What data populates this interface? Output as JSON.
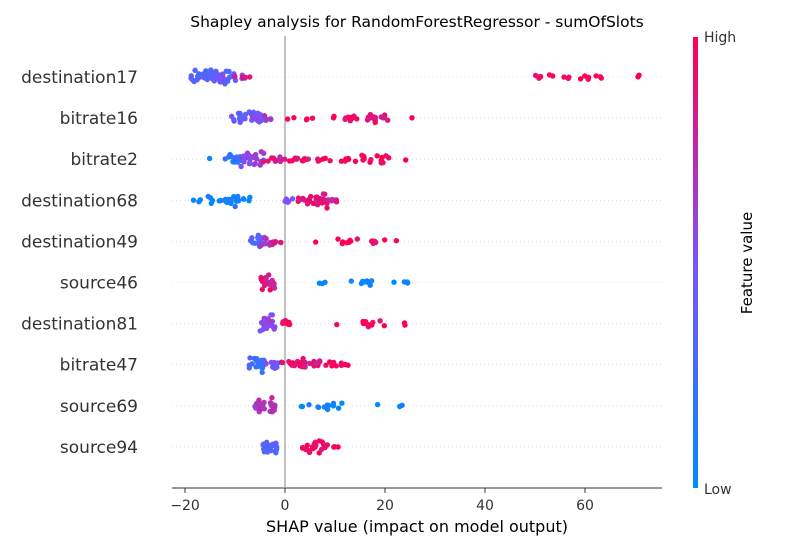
{
  "chart_data": {
    "type": "scatter",
    "subtype": "beeswarm",
    "title": "Shapley analysis for RandomForestRegressor - sumOfSlots",
    "xlabel": "SHAP value (impact on model output)",
    "ylabel": "",
    "xlim": [
      -22.5,
      75.5
    ],
    "xticks": [
      -20,
      0,
      20,
      40,
      60
    ],
    "xtick_labels": [
      "−20",
      "0",
      "20",
      "40",
      "60"
    ],
    "zero_line": true,
    "grid": false,
    "colorbar": {
      "label": "Feature value",
      "high_label": "High",
      "low_label": "Low",
      "low_color": "#008afb",
      "high_color": "#ff0051"
    },
    "features": [
      "destination17",
      "bitrate16",
      "bitrate2",
      "destination68",
      "destination49",
      "source46",
      "destination81",
      "bitrate47",
      "source69",
      "source94"
    ],
    "clusters": [
      {
        "cl": [
          {
            "x": -17.5,
            "w": 1.5,
            "n": 4,
            "v": 0.4
          },
          {
            "x": -15.5,
            "w": 3.5,
            "n": 22,
            "v": 0.3
          },
          {
            "x": -13,
            "w": 3.5,
            "n": 22,
            "v": 0.35
          },
          {
            "x": -11,
            "w": 2.5,
            "n": 10,
            "v": 0.55
          },
          {
            "x": -8.5,
            "w": 2.0,
            "n": 5,
            "v": 0.85
          },
          {
            "x": 49.5,
            "w": 1.5,
            "n": 3,
            "v": 1.0
          },
          {
            "x": 52,
            "w": 1.0,
            "n": 3,
            "v": 1.0
          },
          {
            "x": 55.5,
            "w": 2.0,
            "n": 4,
            "v": 1.0
          },
          {
            "x": 59,
            "w": 2.0,
            "n": 4,
            "v": 1.0
          },
          {
            "x": 62.5,
            "w": 1.5,
            "n": 3,
            "v": 1.0
          },
          {
            "x": 71,
            "w": 0.5,
            "n": 2,
            "v": 1.0
          }
        ]
      },
      {
        "cl": [
          {
            "x": -9.5,
            "w": 1.5,
            "n": 8,
            "v": 0.4
          },
          {
            "x": -7,
            "w": 2.5,
            "n": 26,
            "v": 0.4
          },
          {
            "x": -4.5,
            "w": 2.0,
            "n": 10,
            "v": 0.6
          },
          {
            "x": 1,
            "w": 1.0,
            "n": 2,
            "v": 1.0
          },
          {
            "x": 5,
            "w": 2.0,
            "n": 3,
            "v": 1.0
          },
          {
            "x": 9,
            "w": 1.5,
            "n": 2,
            "v": 1.0
          },
          {
            "x": 14,
            "w": 2.0,
            "n": 8,
            "v": 0.95
          },
          {
            "x": 19,
            "w": 2.5,
            "n": 14,
            "v": 0.9
          },
          {
            "x": 25.5,
            "w": 0.5,
            "n": 1,
            "v": 1.0
          }
        ]
      },
      {
        "cl": [
          {
            "x": -15,
            "w": 0.5,
            "n": 1,
            "v": 0.0
          },
          {
            "x": -10,
            "w": 2.0,
            "n": 14,
            "v": 0.2
          },
          {
            "x": -6.5,
            "w": 2.5,
            "n": 24,
            "v": 0.55
          },
          {
            "x": -2,
            "w": 2.5,
            "n": 10,
            "v": 0.85
          },
          {
            "x": 3,
            "w": 2.5,
            "n": 10,
            "v": 0.9
          },
          {
            "x": 8,
            "w": 2.5,
            "n": 6,
            "v": 0.95
          },
          {
            "x": 13,
            "w": 2.0,
            "n": 6,
            "v": 1.0
          },
          {
            "x": 18,
            "w": 3.0,
            "n": 14,
            "v": 1.0
          },
          {
            "x": 24,
            "w": 0.5,
            "n": 1,
            "v": 1.0
          }
        ]
      },
      {
        "cl": [
          {
            "x": -17.5,
            "w": 1.0,
            "n": 3,
            "v": 0.0
          },
          {
            "x": -13.5,
            "w": 2.5,
            "n": 10,
            "v": 0.0
          },
          {
            "x": -9.5,
            "w": 2.5,
            "n": 16,
            "v": 0.1
          },
          {
            "x": 1,
            "w": 1.0,
            "n": 5,
            "v": 0.5
          },
          {
            "x": 4,
            "w": 1.5,
            "n": 8,
            "v": 0.9
          },
          {
            "x": 6.5,
            "w": 2.0,
            "n": 22,
            "v": 0.9
          },
          {
            "x": 9,
            "w": 1.5,
            "n": 6,
            "v": 0.8
          }
        ]
      },
      {
        "cl": [
          {
            "x": -5.5,
            "w": 1.5,
            "n": 16,
            "v": 0.3
          },
          {
            "x": -3.5,
            "w": 1.5,
            "n": 10,
            "v": 0.7
          },
          {
            "x": -1.5,
            "w": 1.0,
            "n": 4,
            "v": 0.8
          },
          {
            "x": 6.5,
            "w": 0.5,
            "n": 1,
            "v": 1.0
          },
          {
            "x": 12.5,
            "w": 2.0,
            "n": 8,
            "v": 1.0
          },
          {
            "x": 18.5,
            "w": 1.5,
            "n": 6,
            "v": 1.0
          },
          {
            "x": 22.5,
            "w": 0.5,
            "n": 1,
            "v": 1.0
          }
        ]
      },
      {
        "cl": [
          {
            "x": -3.5,
            "w": 1.5,
            "n": 26,
            "v": 0.85
          },
          {
            "x": 7,
            "w": 1.0,
            "n": 3,
            "v": 0.0
          },
          {
            "x": 15,
            "w": 3.0,
            "n": 9,
            "v": 0.0
          },
          {
            "x": 23,
            "w": 2.0,
            "n": 5,
            "v": 0.0
          }
        ]
      },
      {
        "cl": [
          {
            "x": -3.5,
            "w": 1.5,
            "n": 26,
            "v": 0.55
          },
          {
            "x": 0,
            "w": 1.0,
            "n": 6,
            "v": 1.0
          },
          {
            "x": 10,
            "w": 0.5,
            "n": 1,
            "v": 1.0
          },
          {
            "x": 18,
            "w": 2.5,
            "n": 10,
            "v": 1.0
          },
          {
            "x": 23.5,
            "w": 1.0,
            "n": 2,
            "v": 1.0
          }
        ]
      },
      {
        "cl": [
          {
            "x": -5.5,
            "w": 2.0,
            "n": 22,
            "v": 0.25
          },
          {
            "x": -2.5,
            "w": 1.5,
            "n": 10,
            "v": 0.5
          },
          {
            "x": 1,
            "w": 2.0,
            "n": 10,
            "v": 0.9
          },
          {
            "x": 5,
            "w": 2.0,
            "n": 20,
            "v": 0.9
          },
          {
            "x": 10.5,
            "w": 3.0,
            "n": 10,
            "v": 1.0
          }
        ]
      },
      {
        "cl": [
          {
            "x": -4,
            "w": 2.0,
            "n": 26,
            "v": 0.7
          },
          {
            "x": 4,
            "w": 1.0,
            "n": 3,
            "v": 0.0
          },
          {
            "x": 9,
            "w": 3.0,
            "n": 10,
            "v": 0.0
          },
          {
            "x": 19,
            "w": 0.5,
            "n": 1,
            "v": 0.0
          },
          {
            "x": 23,
            "w": 0.5,
            "n": 2,
            "v": 0.0
          }
        ]
      },
      {
        "cl": [
          {
            "x": -3,
            "w": 1.5,
            "n": 24,
            "v": 0.35
          },
          {
            "x": 6,
            "w": 2.5,
            "n": 20,
            "v": 0.95
          },
          {
            "x": 10,
            "w": 1.0,
            "n": 3,
            "v": 1.0
          }
        ]
      }
    ]
  }
}
